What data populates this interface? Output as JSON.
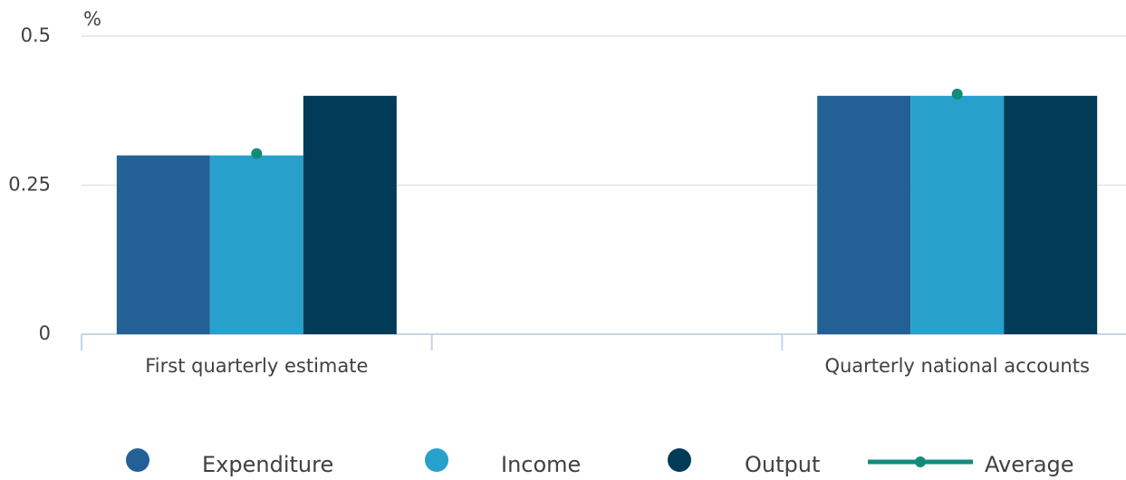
{
  "chart_data": {
    "type": "bar",
    "ylabel": "%",
    "categories": [
      "First quarterly estimate",
      null,
      "Quarterly national accounts"
    ],
    "series": [
      {
        "name": "Expenditure",
        "color": "#236096",
        "values": [
          0.3,
          null,
          0.4
        ]
      },
      {
        "name": "Income",
        "color": "#27a0cc",
        "values": [
          0.3,
          null,
          0.4
        ]
      },
      {
        "name": "Output",
        "color": "#003c57",
        "values": [
          0.4,
          null,
          0.4
        ]
      },
      {
        "name": "Average",
        "type": "line",
        "color": "#118c7b",
        "values": [
          0.303,
          null,
          0.403
        ]
      }
    ],
    "ylim": [
      0,
      0.5
    ],
    "yticks": [
      0,
      0.25,
      0.5
    ],
    "grid": true,
    "legend": "bottom"
  }
}
